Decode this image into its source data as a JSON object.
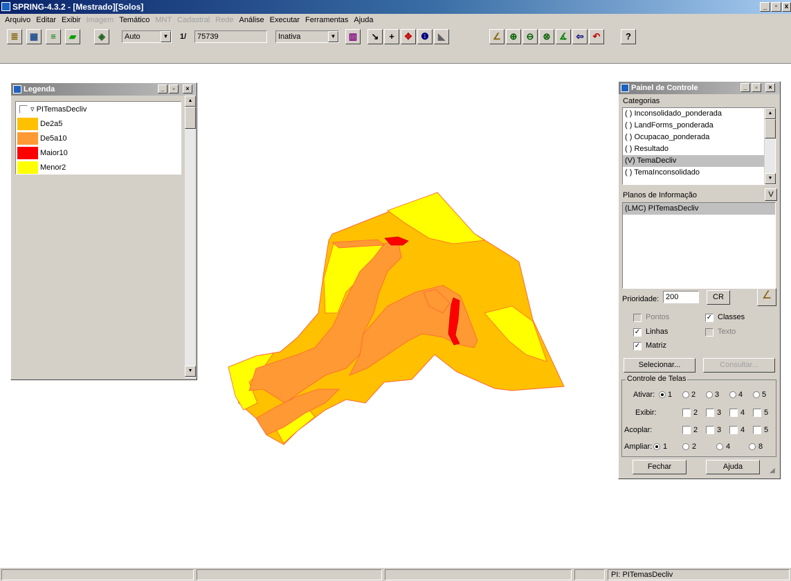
{
  "window": {
    "title": "SPRING-4.3.2 - [Mestrado][Solos]"
  },
  "menu": {
    "items": [
      {
        "label": "Arquivo",
        "enabled": true
      },
      {
        "label": "Editar",
        "enabled": true
      },
      {
        "label": "Exibir",
        "enabled": true
      },
      {
        "label": "Imagem",
        "enabled": false
      },
      {
        "label": "Temático",
        "enabled": true
      },
      {
        "label": "MNT",
        "enabled": false
      },
      {
        "label": "Cadastral",
        "enabled": false
      },
      {
        "label": "Rede",
        "enabled": false
      },
      {
        "label": "Análise",
        "enabled": true
      },
      {
        "label": "Executar",
        "enabled": true
      },
      {
        "label": "Ferramentas",
        "enabled": true
      },
      {
        "label": "Ajuda",
        "enabled": true
      }
    ]
  },
  "toolbar": {
    "zoom_mode": "Auto",
    "scale_prefix": "1/",
    "scale_value": "75739",
    "cursor_mode": "Inativa",
    "help_label": "?"
  },
  "legend": {
    "title": "Legenda",
    "group": "PITemasDecliv",
    "items": [
      {
        "label": "De2a5",
        "color": "#ffc000"
      },
      {
        "label": "De5a10",
        "color": "#ff9933"
      },
      {
        "label": "Maior10",
        "color": "#ff0000"
      },
      {
        "label": "Menor2",
        "color": "#ffff00"
      }
    ]
  },
  "control_panel": {
    "title": "Painel de Controle",
    "categories_label": "Categorias",
    "categories": [
      {
        "label": "( ) Inconsolidado_ponderada",
        "selected": false
      },
      {
        "label": "( ) LandForms_ponderada",
        "selected": false
      },
      {
        "label": "( ) Ocupacao_ponderada",
        "selected": false
      },
      {
        "label": "( ) Resultado",
        "selected": false
      },
      {
        "label": "(V) TemaDecliv",
        "selected": true
      },
      {
        "label": "( ) TemaInconsolidado",
        "selected": false
      }
    ],
    "plans_label": "Planos de Informação",
    "plans_v": "V",
    "plans": [
      "(LMC) PITemasDecliv"
    ],
    "priority_label": "Prioridade:",
    "priority_value": "200",
    "cr_label": "CR",
    "checks": {
      "pontos": "Pontos",
      "classes": "Classes",
      "linhas": "Linhas",
      "texto": "Texto",
      "matriz": "Matriz"
    },
    "select_btn": "Selecionar...",
    "query_btn": "Consultar...",
    "screens_label": "Controle de Telas",
    "ativar": "Ativar:",
    "exibir": "Exibir:",
    "acoplar": "Acoplar:",
    "ampliar": "Ampliar:",
    "n1": "1",
    "n2": "2",
    "n3": "3",
    "n4": "4",
    "n5": "5",
    "n8": "8",
    "close_btn": "Fechar",
    "help_btn": "Ajuda"
  },
  "map": {
    "colors": {
      "de2a5": "#ffc000",
      "de5a10": "#ff9933",
      "maior10": "#ff0000",
      "menor2": "#ffff00",
      "outline": "#ff6633"
    }
  },
  "status": {
    "pi": "PI: PITemasDecliv"
  }
}
